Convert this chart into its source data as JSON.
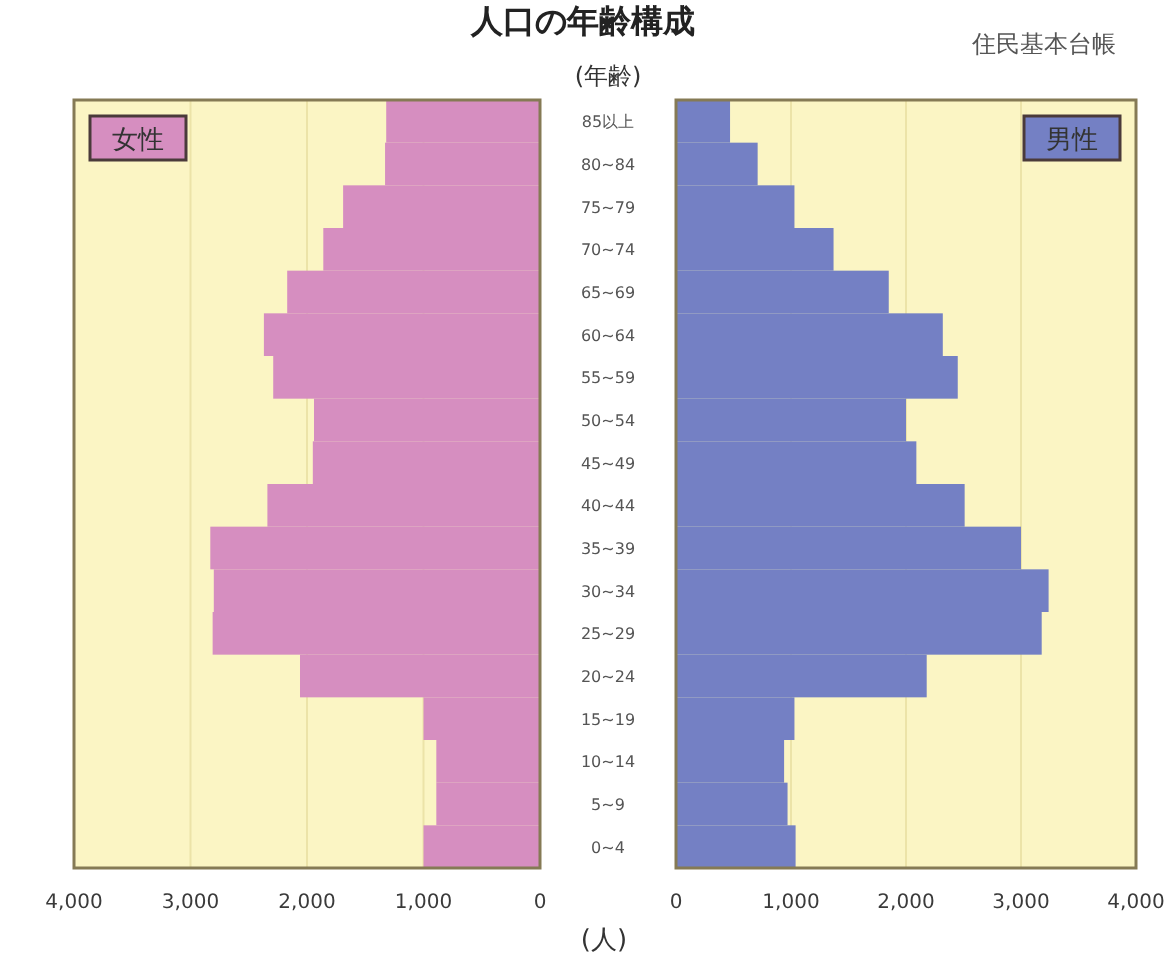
{
  "chart_data": [
    {
      "type": "bar",
      "orientation": "horizontal",
      "title": "人口の年齢構成",
      "series": [
        {
          "name": "女性",
          "color": "#d68ec0",
          "values": [
            1320,
            1330,
            1690,
            1860,
            2170,
            2370,
            2290,
            1940,
            1950,
            2340,
            2830,
            2800,
            2810,
            2060,
            1000,
            890,
            890,
            1000
          ]
        }
      ],
      "xlim": [
        4000,
        0
      ],
      "xticks": [
        {
          "value": 4000,
          "label": "4,000"
        },
        {
          "value": 3000,
          "label": "3,000"
        },
        {
          "value": 2000,
          "label": "2,000"
        },
        {
          "value": 1000,
          "label": "1,000"
        },
        0
      ],
      "tick_labels": "x",
      "grid": "x",
      "legend": "top left"
    },
    {
      "type": "bar",
      "orientation": "horizontal",
      "ylabel": "(年齢)",
      "xlabel": "(人)",
      "annotations": [
        "住民基本台帳"
      ],
      "categories": [
        "85以上",
        "80~84",
        "75~79",
        "70~74",
        "65~69",
        "60~64",
        "55~59",
        "50~54",
        "45~49",
        "40~44",
        "35~39",
        "30~34",
        "25~29",
        "20~24",
        "15~19",
        "10~14",
        "5~9",
        "0~4"
      ],
      "series": [
        {
          "name": "男性",
          "color": "#7480c4",
          "values": [
            470,
            710,
            1030,
            1370,
            1850,
            2320,
            2450,
            2000,
            2090,
            2510,
            3000,
            3240,
            3180,
            2180,
            1030,
            940,
            970,
            1040
          ]
        }
      ],
      "xlim": [
        0,
        4000
      ],
      "xticks": [
        0,
        {
          "value": 1000,
          "label": "1,000"
        },
        {
          "value": 2000,
          "label": "2,000"
        },
        {
          "value": 3000,
          "label": "3,000"
        },
        {
          "value": 4000,
          "label": "4,000"
        }
      ],
      "grid": "x",
      "legend": "top right"
    }
  ]
}
